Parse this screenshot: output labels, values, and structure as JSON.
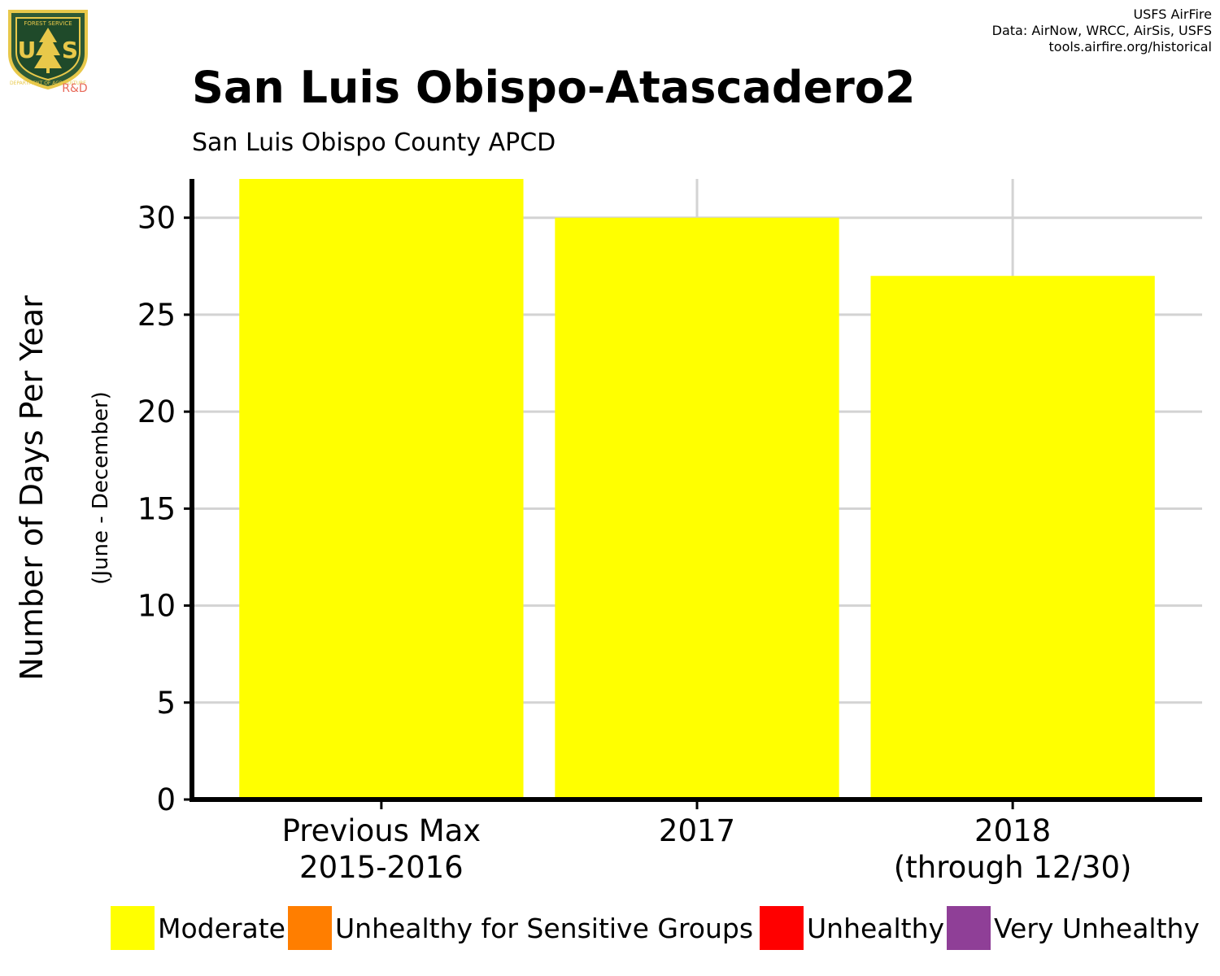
{
  "logo": {
    "top_text": "FOREST SERVICE",
    "letters": "US",
    "bottom_text": "DEPARTMENT OF AGRICULTURE",
    "tag": "R&D"
  },
  "credits": [
    "USFS AirFire",
    "Data: AirNow, WRCC, AirSis, USFS",
    "tools.airfire.org/historical"
  ],
  "chart_data": {
    "type": "bar",
    "title": "San Luis Obispo-Atascadero2",
    "subtitle": "San Luis Obispo County APCD",
    "ylabel": "Number of Days Per Year",
    "ylabel_sub": "(June - December)",
    "xlabel": "",
    "categories": [
      [
        "Previous Max",
        "2015-2016"
      ],
      [
        "2017"
      ],
      [
        "2018",
        "(through 12/30)"
      ]
    ],
    "series": [
      {
        "name": "Moderate",
        "color": "#ffff00",
        "values": [
          32,
          30,
          27
        ]
      },
      {
        "name": "Unhealthy for Sensitive Groups",
        "color": "#ff7e00",
        "values": [
          0,
          0,
          0
        ]
      },
      {
        "name": "Unhealthy",
        "color": "#ff0000",
        "values": [
          0,
          0,
          0
        ]
      },
      {
        "name": "Very Unhealthy",
        "color": "#8f3f97",
        "values": [
          0,
          0,
          0
        ]
      }
    ],
    "yticks": [
      0,
      5,
      10,
      15,
      20,
      25,
      30
    ],
    "ylim": [
      0,
      32
    ],
    "grid": true,
    "legend_position": "bottom"
  }
}
